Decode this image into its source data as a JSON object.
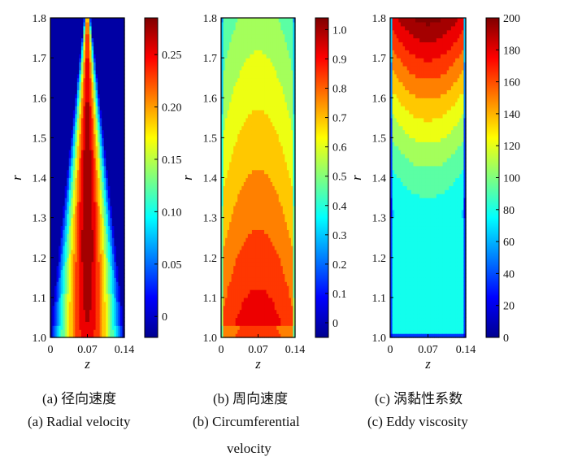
{
  "chart_data": [
    {
      "type": "heatmap",
      "panel": "a",
      "xlabel": "z",
      "ylabel": "r",
      "xticks": [
        "0",
        "0.07",
        "0.14"
      ],
      "xlim": [
        0,
        0.14
      ],
      "ylim": [
        1.0,
        1.8
      ],
      "yticks": [
        "1.0",
        "1.1",
        "1.2",
        "1.3",
        "1.4",
        "1.5",
        "1.6",
        "1.7",
        "1.8"
      ],
      "colorbar": {
        "min": -0.02,
        "max": 0.285,
        "ticks": [
          "0",
          "0.05",
          "0.10",
          "0.15",
          "0.20",
          "0.25"
        ]
      },
      "caption_cn": "(a) 径向速度",
      "caption_en": "(a) Radial velocity"
    },
    {
      "type": "heatmap",
      "panel": "b",
      "xlabel": "z",
      "ylabel": "r",
      "xticks": [
        "0",
        "0.07",
        "0.14"
      ],
      "xlim": [
        0,
        0.14
      ],
      "ylim": [
        1.0,
        1.8
      ],
      "yticks": [
        "1.0",
        "1.1",
        "1.2",
        "1.3",
        "1.4",
        "1.5",
        "1.6",
        "1.7",
        "1.8"
      ],
      "colorbar": {
        "min": -0.05,
        "max": 1.04,
        "ticks": [
          "0",
          "0.1",
          "0.2",
          "0.3",
          "0.4",
          "0.5",
          "0.6",
          "0.7",
          "0.8",
          "0.9",
          "1.0"
        ]
      },
      "caption_cn": "(b) 周向速度",
      "caption_en_line1": "(b) Circumferential",
      "caption_en_line2": "velocity"
    },
    {
      "type": "heatmap",
      "panel": "c",
      "xlabel": "z",
      "ylabel": "r",
      "xticks": [
        "0",
        "0.07",
        "0.14"
      ],
      "xlim": [
        0,
        0.14
      ],
      "ylim": [
        1.0,
        1.8
      ],
      "yticks": [
        "1.0",
        "1.1",
        "1.2",
        "1.3",
        "1.4",
        "1.5",
        "1.6",
        "1.7",
        "1.8"
      ],
      "colorbar": {
        "min": 0,
        "max": 200,
        "ticks": [
          "0",
          "20",
          "40",
          "60",
          "80",
          "100",
          "120",
          "140",
          "160",
          "180",
          "200"
        ]
      },
      "caption_cn": "(c) 涡黏性系数",
      "caption_en": "(c) Eddy viscosity"
    }
  ]
}
